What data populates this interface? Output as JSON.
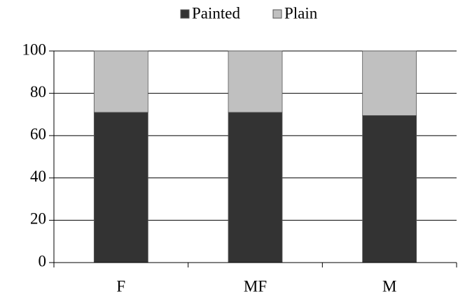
{
  "chart_data": {
    "type": "stacked-bar",
    "categories": [
      "F",
      "MF",
      "M"
    ],
    "series": [
      {
        "name": "Painted",
        "color": "#333333",
        "values": [
          71,
          71,
          69.5
        ]
      },
      {
        "name": "Plain",
        "color": "#c0c0c0",
        "values": [
          29,
          29,
          30.5
        ]
      }
    ],
    "ylim": [
      0,
      100
    ],
    "yticks": [
      0,
      20,
      40,
      60,
      80,
      100
    ],
    "grid": true,
    "legend": "top"
  }
}
